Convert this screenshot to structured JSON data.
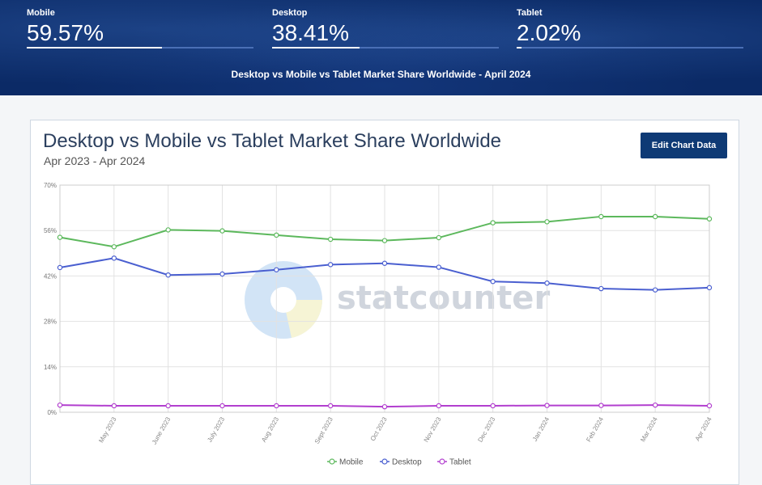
{
  "stats": [
    {
      "label": "Mobile",
      "value": "59.57%",
      "fraction": 0.5957
    },
    {
      "label": "Desktop",
      "value": "38.41%",
      "fraction": 0.3841
    },
    {
      "label": "Tablet",
      "value": "2.02%",
      "fraction": 0.0202
    }
  ],
  "banner_title": "Desktop vs Mobile vs Tablet Market Share Worldwide - April 2024",
  "card": {
    "title": "Desktop vs Mobile vs Tablet Market Share Worldwide",
    "range": "Apr 2023 - Apr 2024",
    "edit_button": "Edit Chart Data"
  },
  "watermark": "statcounter",
  "chart_data": {
    "type": "line",
    "title": "Desktop vs Mobile vs Tablet Market Share Worldwide",
    "subtitle": "Apr 2023 - Apr 2024",
    "x": [
      "",
      "May 2023",
      "June 2023",
      "July 2023",
      "Aug 2023",
      "Sept 2023",
      "Oct 2023",
      "Nov 2023",
      "Dec 2023",
      "Jan 2024",
      "Feb 2024",
      "Mar 2024",
      "Apr 2024"
    ],
    "yticks": [
      "0%",
      "14%",
      "28%",
      "42%",
      "56%",
      "70%"
    ],
    "ylim": [
      0,
      70
    ],
    "grid": true,
    "legend_position": "bottom",
    "series": [
      {
        "name": "Mobile",
        "color": "#5cb85c",
        "values": [
          53.9,
          51.0,
          56.2,
          55.9,
          54.6,
          53.3,
          52.9,
          53.8,
          58.4,
          58.7,
          60.3,
          60.3,
          59.6
        ]
      },
      {
        "name": "Desktop",
        "color": "#4a5fd0",
        "values": [
          44.6,
          47.5,
          42.3,
          42.6,
          43.9,
          45.5,
          45.9,
          44.7,
          40.3,
          39.8,
          38.1,
          37.7,
          38.4
        ]
      },
      {
        "name": "Tablet",
        "color": "#b23fcf",
        "values": [
          2.2,
          2.0,
          2.0,
          2.0,
          2.0,
          2.0,
          1.7,
          2.0,
          2.0,
          2.1,
          2.1,
          2.2,
          2.0
        ]
      }
    ]
  }
}
